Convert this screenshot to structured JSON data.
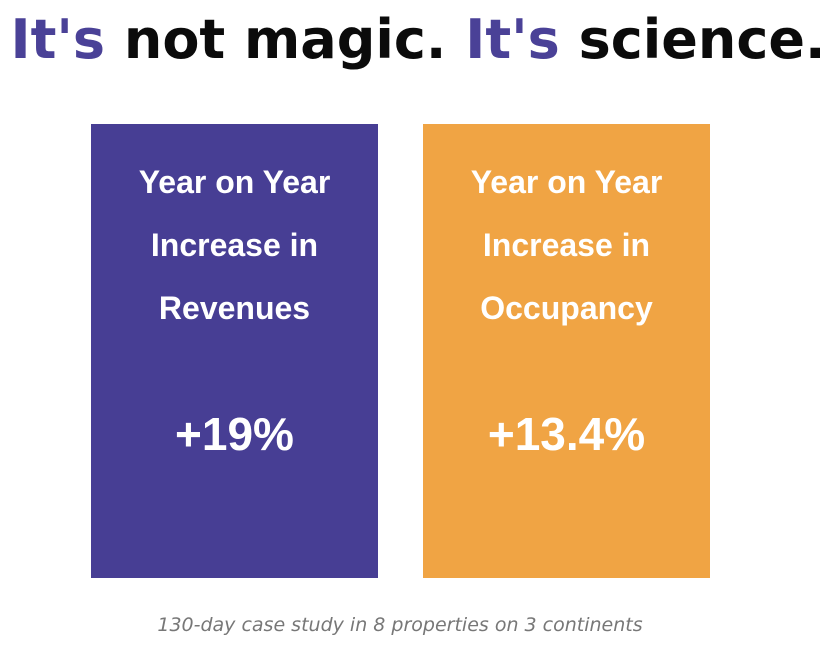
{
  "headline": {
    "part1_accent": "It's",
    "part1_rest": " not magic. ",
    "part2_accent": "It's",
    "part2_rest": " science."
  },
  "cards": [
    {
      "title_lines": [
        "Year on Year",
        "Increase in",
        "Revenues"
      ],
      "value": "+19%",
      "color": "#473e94"
    },
    {
      "title_lines": [
        "Year on Year",
        "Increase in",
        "Occupancy"
      ],
      "value": "+13.4%",
      "color": "#f0a444"
    }
  ],
  "caption": "130-day case study in 8 properties on 3 continents",
  "colors": {
    "accent": "#4a4197",
    "text": "#0b0b0b",
    "caption": "#777777"
  }
}
